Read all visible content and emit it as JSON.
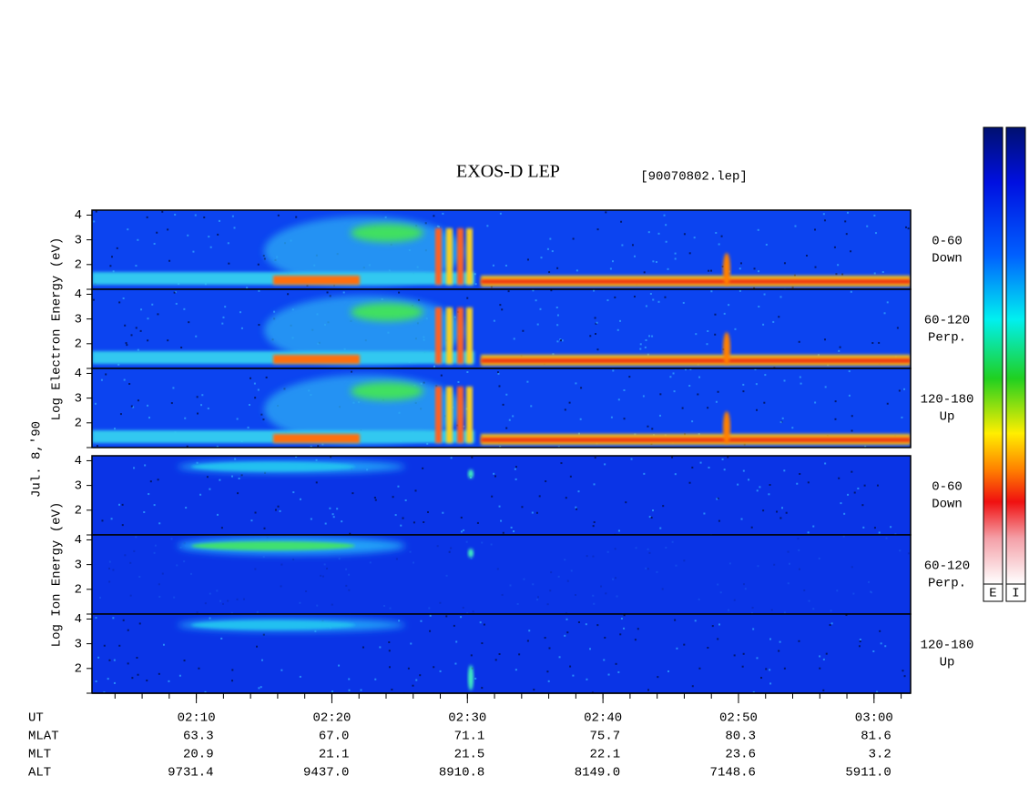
{
  "header": {
    "title": "EXOS-D LEP",
    "file": "[90070802.lep]"
  },
  "chart_data": {
    "type": "spectrogram",
    "date": "Jul. 8,'90",
    "xlim": [
      2.3,
      62.7
    ],
    "xticks": [
      {
        "value": 10,
        "label": "02:10"
      },
      {
        "value": 20,
        "label": "02:20"
      },
      {
        "value": 30,
        "label": "02:30"
      },
      {
        "value": 40,
        "label": "02:40"
      },
      {
        "value": 50,
        "label": "02:50"
      },
      {
        "value": 60,
        "label": "03:00"
      }
    ],
    "xminor_step": 2,
    "ylim": [
      1,
      4.2
    ],
    "yticks": [
      2,
      3,
      4
    ],
    "groups": [
      {
        "ylabel": "Log Electron Energy (eV)",
        "panels": [
          {
            "angle": "0-60",
            "direction": "Down"
          },
          {
            "angle": "60-120",
            "direction": "Perp."
          },
          {
            "angle": "120-180",
            "direction": "Up"
          }
        ]
      },
      {
        "ylabel": "Log Ion Energy (eV)",
        "panels": [
          {
            "angle": "0-60",
            "direction": "Down"
          },
          {
            "angle": "60-120",
            "direction": "Perp."
          },
          {
            "angle": "120-180",
            "direction": "Up"
          }
        ]
      }
    ]
  },
  "orbit": {
    "ut_label": "UT",
    "rows": [
      {
        "name": "MLAT",
        "values": [
          "63.3",
          "67.0",
          "71.1",
          "75.7",
          "80.3",
          "81.6"
        ]
      },
      {
        "name": "MLT",
        "values": [
          "20.9",
          "21.1",
          "21.5",
          "22.1",
          "23.6",
          "3.2"
        ]
      },
      {
        "name": "ALT",
        "values": [
          "9731.4",
          "9437.0",
          "8910.8",
          "8149.0",
          "7148.6",
          "5911.0"
        ]
      }
    ]
  },
  "colorbar": {
    "labels": [
      "E",
      "I"
    ]
  }
}
